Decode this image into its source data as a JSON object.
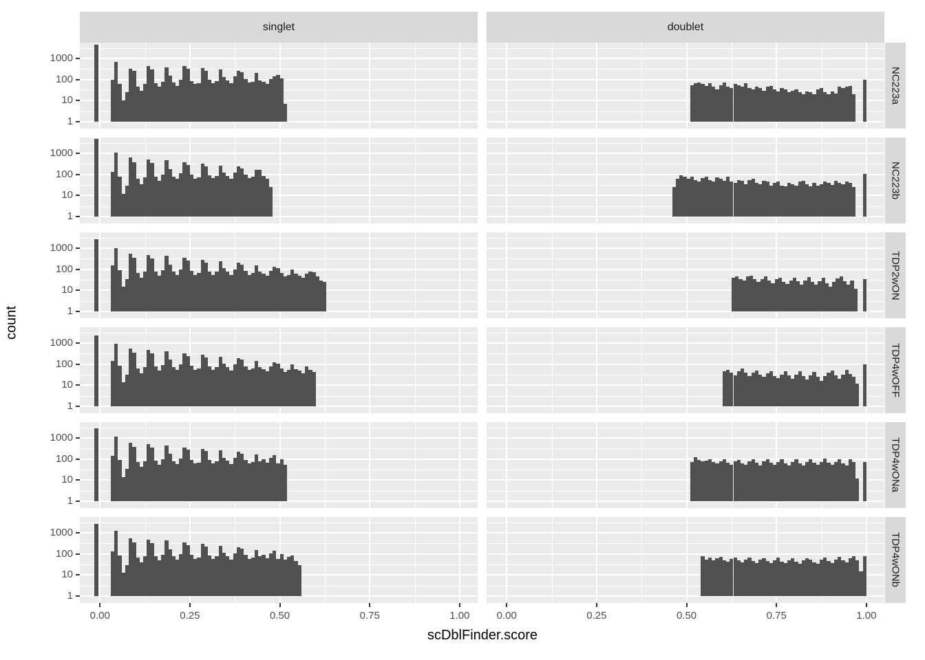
{
  "chart_data": {
    "type": "bar",
    "subtype": "faceted histogram grid, ggplot2 style, log10 y scale",
    "title": "",
    "xlabel": "scDblFinder.score",
    "ylabel": "count",
    "col_facets": [
      "singlet",
      "doublet"
    ],
    "row_facets": [
      "NC223a",
      "NC223b",
      "TDP2wON",
      "TDP4wOFF",
      "TDP4wONa",
      "TDP4wONb"
    ],
    "x_tick_values": [
      0,
      0.25,
      0.5,
      0.75,
      1
    ],
    "x_tick_labels": [
      "0.00",
      "0.25",
      "0.50",
      "0.75",
      "1.00"
    ],
    "x_minor_gridlines": [
      0.125,
      0.375,
      0.625,
      0.875
    ],
    "y_scale": "log10",
    "y_tick_values": [
      1,
      10,
      100,
      1000
    ],
    "y_tick_labels": [
      "1",
      "10",
      "100",
      "1000"
    ],
    "y_minor_gridlines": [
      3.16,
      31.6,
      316,
      3160
    ],
    "x_range": [
      -0.056,
      1.05
    ],
    "y_range": [
      1,
      5570
    ],
    "grid": "white major and minor gridlines on grey panel",
    "legend_position": "none",
    "binwidth": 0.01,
    "colors": {
      "bar": "#505050",
      "panel_bg": "#ebebeb",
      "strip_bg": "#d9d9d9",
      "gridline": "#ffffff",
      "tick_text": "#4d4d4d",
      "strip_text": "#1a1a1a",
      "axis_title": "#000000",
      "tick_mark": "#333333"
    },
    "panels": [
      {
        "row": "NC223a",
        "col": "singlet",
        "start": 0.03,
        "counts": [
          100,
          680,
          60,
          10,
          25,
          330,
          260,
          45,
          30,
          60,
          420,
          290,
          65,
          45,
          80,
          380,
          150,
          70,
          50,
          100,
          430,
          320,
          85,
          60,
          65,
          350,
          260,
          95,
          65,
          85,
          300,
          130,
          90,
          65,
          140,
          260,
          220,
          105,
          70,
          80,
          200,
          90,
          75,
          60,
          105,
          140,
          160,
          110,
          7
        ],
        "spikes": [
          [
            -0.01,
            4300
          ]
        ]
      },
      {
        "row": "NC223a",
        "col": "doublet",
        "start": 0.51,
        "counts": [
          55,
          65,
          70,
          60,
          50,
          65,
          45,
          35,
          55,
          70,
          45,
          40,
          60,
          55,
          45,
          65,
          40,
          35,
          45,
          40,
          30,
          45,
          50,
          35,
          28,
          40,
          35,
          25,
          30,
          35,
          25,
          20,
          28,
          25,
          20,
          33,
          40,
          25,
          20,
          28,
          22,
          45,
          40,
          45,
          50,
          20
        ],
        "spikes": [
          [
            0.995,
            95
          ]
        ]
      },
      {
        "row": "NC223b",
        "col": "singlet",
        "start": 0.03,
        "counts": [
          130,
          1100,
          80,
          12,
          30,
          620,
          380,
          60,
          35,
          70,
          520,
          350,
          80,
          50,
          95,
          460,
          180,
          80,
          60,
          110,
          380,
          280,
          95,
          60,
          70,
          330,
          240,
          90,
          65,
          85,
          260,
          120,
          85,
          60,
          120,
          230,
          190,
          95,
          65,
          75,
          170,
          160,
          85,
          60,
          25
        ],
        "spikes": [
          [
            -0.01,
            4700
          ]
        ]
      },
      {
        "row": "NC223b",
        "col": "doublet",
        "start": 0.46,
        "counts": [
          25,
          60,
          90,
          75,
          60,
          75,
          55,
          45,
          65,
          80,
          55,
          45,
          70,
          60,
          50,
          75,
          45,
          40,
          55,
          50,
          35,
          55,
          60,
          40,
          35,
          50,
          45,
          30,
          40,
          45,
          30,
          28,
          40,
          35,
          30,
          45,
          50,
          35,
          28,
          40,
          30,
          35,
          45,
          40,
          32,
          50,
          40,
          35,
          45,
          40,
          25
        ],
        "spikes": [
          [
            0.995,
            105
          ]
        ]
      },
      {
        "row": "TDP2wON",
        "col": "singlet",
        "start": 0.03,
        "counts": [
          150,
          1000,
          90,
          15,
          35,
          560,
          350,
          65,
          40,
          75,
          480,
          330,
          80,
          50,
          90,
          420,
          170,
          75,
          55,
          100,
          340,
          250,
          85,
          55,
          65,
          280,
          210,
          80,
          55,
          75,
          230,
          110,
          75,
          52,
          100,
          200,
          170,
          85,
          55,
          65,
          150,
          75,
          60,
          48,
          85,
          130,
          110,
          65,
          45,
          55,
          100,
          60,
          50,
          40,
          60,
          80,
          70,
          45,
          30,
          25
        ],
        "spikes": [
          [
            -0.01,
            2700
          ]
        ]
      },
      {
        "row": "TDP2wON",
        "col": "doublet",
        "start": 0.625,
        "counts": [
          40,
          45,
          35,
          30,
          45,
          50,
          35,
          25,
          35,
          45,
          30,
          22,
          35,
          40,
          25,
          20,
          30,
          40,
          28,
          18,
          30,
          42,
          25,
          18,
          28,
          40,
          22,
          15,
          25,
          38,
          45,
          28,
          18,
          30,
          12
        ],
        "spikes": [
          [
            0.995,
            35
          ]
        ]
      },
      {
        "row": "TDP4wOFF",
        "col": "singlet",
        "start": 0.03,
        "counts": [
          140,
          950,
          85,
          14,
          32,
          540,
          340,
          62,
          38,
          72,
          460,
          320,
          78,
          48,
          88,
          400,
          165,
          72,
          52,
          95,
          330,
          240,
          82,
          54,
          62,
          270,
          200,
          78,
          52,
          72,
          220,
          105,
          72,
          50,
          95,
          190,
          160,
          80,
          52,
          62,
          145,
          72,
          58,
          45,
          80,
          125,
          105,
          62,
          42,
          52,
          95,
          58,
          48,
          38,
          78,
          55,
          42
        ],
        "spikes": [
          [
            -0.01,
            2200
          ]
        ]
      },
      {
        "row": "TDP4wOFF",
        "col": "doublet",
        "start": 0.6,
        "counts": [
          45,
          55,
          40,
          30,
          45,
          60,
          40,
          28,
          40,
          50,
          32,
          25,
          38,
          45,
          28,
          22,
          32,
          45,
          30,
          20,
          32,
          45,
          28,
          18,
          30,
          42,
          25,
          16,
          28,
          40,
          48,
          30,
          20,
          32,
          55,
          35,
          25,
          12
        ],
        "spikes": [
          [
            0.995,
            100
          ]
        ]
      },
      {
        "row": "TDP4wONa",
        "col": "singlet",
        "start": 0.03,
        "counts": [
          140,
          1150,
          90,
          14,
          33,
          600,
          380,
          70,
          42,
          80,
          500,
          340,
          85,
          55,
          95,
          440,
          175,
          80,
          58,
          105,
          360,
          270,
          92,
          60,
          68,
          300,
          230,
          88,
          60,
          80,
          250,
          115,
          82,
          58,
          110,
          215,
          180,
          90,
          60,
          70,
          160,
          80,
          95,
          65,
          110,
          150,
          60,
          100,
          55
        ],
        "spikes": [
          [
            -0.01,
            2900
          ]
        ]
      },
      {
        "row": "TDP4wONa",
        "col": "doublet",
        "start": 0.51,
        "counts": [
          70,
          120,
          90,
          75,
          85,
          100,
          70,
          60,
          80,
          95,
          65,
          55,
          80,
          90,
          60,
          55,
          75,
          95,
          65,
          50,
          75,
          100,
          65,
          52,
          72,
          95,
          60,
          50,
          70,
          95,
          62,
          50,
          72,
          100,
          65,
          52,
          70,
          105,
          68,
          52,
          70,
          100,
          62,
          50,
          95,
          70,
          12
        ],
        "spikes": [
          [
            0.995,
            70
          ]
        ]
      },
      {
        "row": "TDP4wONb",
        "col": "singlet",
        "start": 0.03,
        "counts": [
          130,
          1200,
          85,
          13,
          30,
          560,
          360,
          65,
          40,
          75,
          480,
          330,
          80,
          50,
          90,
          430,
          170,
          78,
          55,
          100,
          350,
          260,
          88,
          58,
          66,
          290,
          220,
          85,
          58,
          76,
          240,
          112,
          78,
          55,
          105,
          205,
          175,
          88,
          58,
          68,
          155,
          78,
          90,
          62,
          105,
          145,
          58,
          95,
          52,
          70,
          85,
          45,
          30
        ],
        "spikes": [
          [
            -0.01,
            2600
          ]
        ]
      },
      {
        "row": "TDP4wONb",
        "col": "doublet",
        "start": 0.54,
        "counts": [
          75,
          55,
          65,
          50,
          60,
          70,
          50,
          42,
          58,
          68,
          48,
          40,
          55,
          65,
          45,
          38,
          52,
          62,
          45,
          36,
          50,
          65,
          44,
          36,
          50,
          62,
          42,
          35,
          48,
          60,
          55,
          40,
          35,
          52,
          68,
          45,
          38,
          55,
          70,
          48,
          40,
          60,
          75,
          50,
          15
        ],
        "spikes": [
          [
            0.995,
            80
          ]
        ]
      }
    ]
  }
}
